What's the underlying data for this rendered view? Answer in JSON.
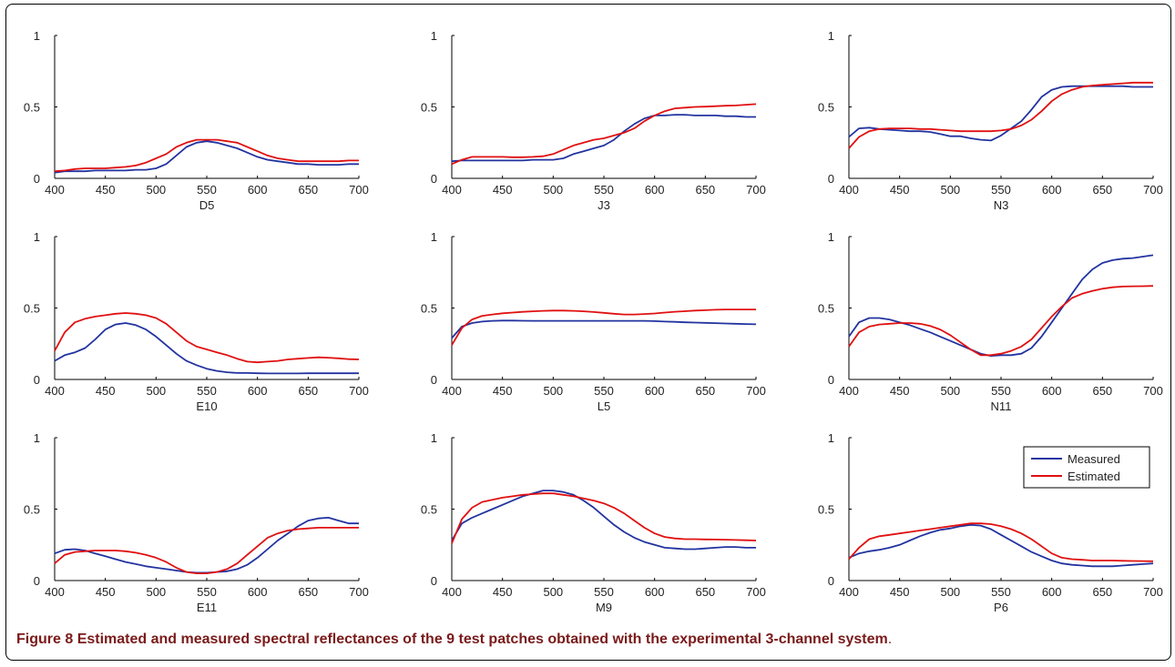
{
  "figure": {
    "caption_label": "Figure 8",
    "caption_text": "Estimated and measured spectral reflectances of the 9 test patches obtained with the experimental 3-channel system",
    "caption_period": "."
  },
  "colors": {
    "measured": "#2233a0",
    "estimated": "#e01010"
  },
  "chart_data": [
    {
      "type": "line",
      "title": "",
      "xlabel": "D5",
      "ylabel": "",
      "xlim": [
        400,
        700
      ],
      "ylim": [
        0,
        1
      ],
      "xticks": [
        400,
        450,
        500,
        550,
        600,
        650,
        700
      ],
      "yticks": [
        0,
        0.5,
        1
      ],
      "x": [
        400,
        410,
        420,
        430,
        440,
        450,
        460,
        470,
        480,
        490,
        500,
        510,
        520,
        530,
        540,
        550,
        560,
        570,
        580,
        590,
        600,
        610,
        620,
        630,
        640,
        650,
        660,
        670,
        680,
        690,
        700
      ],
      "series": [
        {
          "name": "Measured",
          "values": [
            0.04,
            0.05,
            0.05,
            0.05,
            0.055,
            0.055,
            0.055,
            0.055,
            0.06,
            0.06,
            0.07,
            0.1,
            0.16,
            0.22,
            0.25,
            0.26,
            0.25,
            0.23,
            0.21,
            0.18,
            0.15,
            0.13,
            0.12,
            0.11,
            0.1,
            0.1,
            0.095,
            0.095,
            0.095,
            0.1,
            0.1
          ]
        },
        {
          "name": "Estimated",
          "values": [
            0.05,
            0.055,
            0.065,
            0.07,
            0.07,
            0.07,
            0.075,
            0.08,
            0.09,
            0.11,
            0.14,
            0.17,
            0.22,
            0.25,
            0.27,
            0.27,
            0.27,
            0.26,
            0.25,
            0.22,
            0.19,
            0.16,
            0.14,
            0.13,
            0.12,
            0.12,
            0.12,
            0.12,
            0.12,
            0.125,
            0.125
          ]
        }
      ]
    },
    {
      "type": "line",
      "title": "",
      "xlabel": "J3",
      "ylabel": "",
      "xlim": [
        400,
        700
      ],
      "ylim": [
        0,
        1
      ],
      "xticks": [
        400,
        450,
        500,
        550,
        600,
        650,
        700
      ],
      "yticks": [
        0,
        0.5,
        1
      ],
      "x": [
        400,
        410,
        420,
        430,
        440,
        450,
        460,
        470,
        480,
        490,
        500,
        510,
        520,
        530,
        540,
        550,
        560,
        570,
        580,
        590,
        600,
        610,
        620,
        630,
        640,
        650,
        660,
        670,
        680,
        690,
        700
      ],
      "series": [
        {
          "name": "Measured",
          "values": [
            0.12,
            0.125,
            0.125,
            0.125,
            0.125,
            0.125,
            0.125,
            0.125,
            0.13,
            0.13,
            0.13,
            0.14,
            0.17,
            0.19,
            0.21,
            0.23,
            0.27,
            0.33,
            0.38,
            0.42,
            0.44,
            0.44,
            0.445,
            0.445,
            0.44,
            0.44,
            0.44,
            0.435,
            0.435,
            0.43,
            0.43
          ]
        },
        {
          "name": "Estimated",
          "values": [
            0.1,
            0.13,
            0.15,
            0.15,
            0.15,
            0.15,
            0.148,
            0.148,
            0.15,
            0.155,
            0.17,
            0.2,
            0.23,
            0.25,
            0.27,
            0.28,
            0.3,
            0.32,
            0.35,
            0.4,
            0.44,
            0.47,
            0.49,
            0.495,
            0.5,
            0.502,
            0.505,
            0.508,
            0.51,
            0.515,
            0.52
          ]
        }
      ]
    },
    {
      "type": "line",
      "title": "",
      "xlabel": "N3",
      "ylabel": "",
      "xlim": [
        400,
        700
      ],
      "ylim": [
        0,
        1
      ],
      "xticks": [
        400,
        450,
        500,
        550,
        600,
        650,
        700
      ],
      "yticks": [
        0,
        0.5,
        1
      ],
      "x": [
        400,
        410,
        420,
        430,
        440,
        450,
        460,
        470,
        480,
        490,
        500,
        510,
        520,
        530,
        540,
        550,
        560,
        570,
        580,
        590,
        600,
        610,
        620,
        630,
        640,
        650,
        660,
        670,
        680,
        690,
        700
      ],
      "series": [
        {
          "name": "Measured",
          "values": [
            0.29,
            0.35,
            0.355,
            0.345,
            0.34,
            0.335,
            0.33,
            0.33,
            0.325,
            0.31,
            0.295,
            0.295,
            0.28,
            0.27,
            0.265,
            0.3,
            0.35,
            0.4,
            0.48,
            0.57,
            0.62,
            0.64,
            0.645,
            0.645,
            0.645,
            0.645,
            0.645,
            0.645,
            0.64,
            0.64,
            0.64
          ]
        },
        {
          "name": "Estimated",
          "values": [
            0.21,
            0.29,
            0.33,
            0.345,
            0.35,
            0.35,
            0.35,
            0.345,
            0.345,
            0.34,
            0.335,
            0.33,
            0.33,
            0.33,
            0.33,
            0.335,
            0.345,
            0.37,
            0.41,
            0.47,
            0.54,
            0.59,
            0.62,
            0.64,
            0.65,
            0.655,
            0.66,
            0.665,
            0.67,
            0.67,
            0.67
          ]
        }
      ]
    },
    {
      "type": "line",
      "title": "",
      "xlabel": "E10",
      "ylabel": "",
      "xlim": [
        400,
        700
      ],
      "ylim": [
        0,
        1
      ],
      "xticks": [
        400,
        450,
        500,
        550,
        600,
        650,
        700
      ],
      "yticks": [
        0,
        0.5,
        1
      ],
      "x": [
        400,
        410,
        420,
        430,
        440,
        450,
        460,
        470,
        480,
        490,
        500,
        510,
        520,
        530,
        540,
        550,
        560,
        570,
        580,
        590,
        600,
        610,
        620,
        630,
        640,
        650,
        660,
        670,
        680,
        690,
        700
      ],
      "series": [
        {
          "name": "Measured",
          "values": [
            0.13,
            0.17,
            0.19,
            0.22,
            0.28,
            0.35,
            0.385,
            0.395,
            0.38,
            0.35,
            0.3,
            0.24,
            0.18,
            0.13,
            0.1,
            0.075,
            0.06,
            0.05,
            0.045,
            0.045,
            0.043,
            0.042,
            0.042,
            0.042,
            0.042,
            0.043,
            0.043,
            0.043,
            0.043,
            0.043,
            0.043
          ]
        },
        {
          "name": "Estimated",
          "values": [
            0.2,
            0.33,
            0.4,
            0.425,
            0.44,
            0.45,
            0.46,
            0.465,
            0.46,
            0.45,
            0.43,
            0.39,
            0.33,
            0.27,
            0.23,
            0.21,
            0.19,
            0.17,
            0.145,
            0.125,
            0.12,
            0.125,
            0.13,
            0.14,
            0.145,
            0.15,
            0.155,
            0.152,
            0.148,
            0.142,
            0.14
          ]
        }
      ]
    },
    {
      "type": "line",
      "title": "",
      "xlabel": "L5",
      "ylabel": "",
      "xlim": [
        400,
        700
      ],
      "ylim": [
        0,
        1
      ],
      "xticks": [
        400,
        450,
        500,
        550,
        600,
        650,
        700
      ],
      "yticks": [
        0,
        0.5,
        1
      ],
      "x": [
        400,
        410,
        420,
        430,
        440,
        450,
        460,
        470,
        480,
        490,
        500,
        510,
        520,
        530,
        540,
        550,
        560,
        570,
        580,
        590,
        600,
        610,
        620,
        630,
        640,
        650,
        660,
        670,
        680,
        690,
        700
      ],
      "series": [
        {
          "name": "Measured",
          "values": [
            0.29,
            0.37,
            0.395,
            0.405,
            0.41,
            0.412,
            0.412,
            0.411,
            0.41,
            0.41,
            0.41,
            0.41,
            0.41,
            0.41,
            0.41,
            0.41,
            0.41,
            0.41,
            0.41,
            0.41,
            0.408,
            0.405,
            0.403,
            0.4,
            0.398,
            0.396,
            0.394,
            0.392,
            0.39,
            0.388,
            0.386
          ]
        },
        {
          "name": "Estimated",
          "values": [
            0.24,
            0.36,
            0.42,
            0.445,
            0.455,
            0.463,
            0.468,
            0.473,
            0.477,
            0.48,
            0.482,
            0.482,
            0.48,
            0.477,
            0.472,
            0.466,
            0.46,
            0.455,
            0.455,
            0.458,
            0.462,
            0.468,
            0.474,
            0.478,
            0.482,
            0.485,
            0.488,
            0.49,
            0.49,
            0.49,
            0.49
          ]
        }
      ]
    },
    {
      "type": "line",
      "title": "",
      "xlabel": "N11",
      "ylabel": "",
      "xlim": [
        400,
        700
      ],
      "ylim": [
        0,
        1
      ],
      "xticks": [
        400,
        450,
        500,
        550,
        600,
        650,
        700
      ],
      "yticks": [
        0,
        0.5,
        1
      ],
      "x": [
        400,
        410,
        420,
        430,
        440,
        450,
        460,
        470,
        480,
        490,
        500,
        510,
        520,
        530,
        540,
        550,
        560,
        570,
        580,
        590,
        600,
        610,
        620,
        630,
        640,
        650,
        660,
        670,
        680,
        690,
        700
      ],
      "series": [
        {
          "name": "Measured",
          "values": [
            0.3,
            0.4,
            0.43,
            0.43,
            0.42,
            0.4,
            0.38,
            0.355,
            0.33,
            0.3,
            0.27,
            0.24,
            0.21,
            0.18,
            0.165,
            0.17,
            0.17,
            0.18,
            0.22,
            0.3,
            0.4,
            0.5,
            0.6,
            0.7,
            0.77,
            0.815,
            0.835,
            0.845,
            0.85,
            0.86,
            0.87
          ]
        },
        {
          "name": "Estimated",
          "values": [
            0.23,
            0.33,
            0.37,
            0.385,
            0.39,
            0.395,
            0.395,
            0.39,
            0.375,
            0.35,
            0.31,
            0.26,
            0.21,
            0.17,
            0.17,
            0.18,
            0.2,
            0.23,
            0.28,
            0.36,
            0.44,
            0.51,
            0.57,
            0.6,
            0.62,
            0.635,
            0.645,
            0.65,
            0.652,
            0.653,
            0.655
          ]
        }
      ]
    },
    {
      "type": "line",
      "title": "",
      "xlabel": "E11",
      "ylabel": "",
      "xlim": [
        400,
        700
      ],
      "ylim": [
        0,
        1
      ],
      "xticks": [
        400,
        450,
        500,
        550,
        600,
        650,
        700
      ],
      "yticks": [
        0,
        0.5,
        1
      ],
      "x": [
        400,
        410,
        420,
        430,
        440,
        450,
        460,
        470,
        480,
        490,
        500,
        510,
        520,
        530,
        540,
        550,
        560,
        570,
        580,
        590,
        600,
        610,
        620,
        630,
        640,
        650,
        660,
        670,
        680,
        690,
        700
      ],
      "series": [
        {
          "name": "Measured",
          "values": [
            0.19,
            0.215,
            0.22,
            0.21,
            0.19,
            0.17,
            0.15,
            0.13,
            0.115,
            0.1,
            0.09,
            0.08,
            0.07,
            0.06,
            0.055,
            0.055,
            0.06,
            0.065,
            0.08,
            0.11,
            0.16,
            0.22,
            0.28,
            0.33,
            0.38,
            0.42,
            0.435,
            0.44,
            0.42,
            0.4,
            0.4
          ]
        },
        {
          "name": "Estimated",
          "values": [
            0.12,
            0.18,
            0.2,
            0.205,
            0.21,
            0.21,
            0.21,
            0.205,
            0.195,
            0.18,
            0.16,
            0.13,
            0.09,
            0.06,
            0.05,
            0.05,
            0.06,
            0.08,
            0.12,
            0.18,
            0.24,
            0.3,
            0.33,
            0.35,
            0.36,
            0.365,
            0.37,
            0.37,
            0.37,
            0.37,
            0.37
          ]
        }
      ]
    },
    {
      "type": "line",
      "title": "",
      "xlabel": "M9",
      "ylabel": "",
      "xlim": [
        400,
        700
      ],
      "ylim": [
        0,
        1
      ],
      "xticks": [
        400,
        450,
        500,
        550,
        600,
        650,
        700
      ],
      "yticks": [
        0,
        0.5,
        1
      ],
      "x": [
        400,
        410,
        420,
        430,
        440,
        450,
        460,
        470,
        480,
        490,
        500,
        510,
        520,
        530,
        540,
        550,
        560,
        570,
        580,
        590,
        600,
        610,
        620,
        630,
        640,
        650,
        660,
        670,
        680,
        690,
        700
      ],
      "series": [
        {
          "name": "Measured",
          "values": [
            0.28,
            0.4,
            0.44,
            0.47,
            0.5,
            0.53,
            0.56,
            0.59,
            0.61,
            0.63,
            0.63,
            0.62,
            0.6,
            0.56,
            0.51,
            0.45,
            0.39,
            0.34,
            0.3,
            0.27,
            0.25,
            0.23,
            0.225,
            0.22,
            0.22,
            0.225,
            0.23,
            0.235,
            0.235,
            0.23,
            0.23
          ]
        },
        {
          "name": "Estimated",
          "values": [
            0.26,
            0.43,
            0.51,
            0.55,
            0.565,
            0.58,
            0.59,
            0.6,
            0.605,
            0.61,
            0.61,
            0.6,
            0.59,
            0.575,
            0.56,
            0.54,
            0.51,
            0.47,
            0.42,
            0.37,
            0.33,
            0.305,
            0.295,
            0.29,
            0.29,
            0.288,
            0.287,
            0.286,
            0.284,
            0.282,
            0.28
          ]
        }
      ]
    },
    {
      "type": "line",
      "title": "",
      "xlabel": "P6",
      "ylabel": "",
      "xlim": [
        400,
        700
      ],
      "ylim": [
        0,
        1
      ],
      "xticks": [
        400,
        450,
        500,
        550,
        600,
        650,
        700
      ],
      "yticks": [
        0,
        0.5,
        1
      ],
      "legend": {
        "position": "top-right",
        "entries": [
          "Measured",
          "Estimated"
        ]
      },
      "x": [
        400,
        410,
        420,
        430,
        440,
        450,
        460,
        470,
        480,
        490,
        500,
        510,
        520,
        530,
        540,
        550,
        560,
        570,
        580,
        590,
        600,
        610,
        620,
        630,
        640,
        650,
        660,
        670,
        680,
        690,
        700
      ],
      "series": [
        {
          "name": "Measured",
          "values": [
            0.16,
            0.19,
            0.205,
            0.215,
            0.23,
            0.25,
            0.28,
            0.31,
            0.335,
            0.355,
            0.365,
            0.38,
            0.39,
            0.385,
            0.36,
            0.32,
            0.28,
            0.24,
            0.2,
            0.17,
            0.14,
            0.12,
            0.11,
            0.105,
            0.1,
            0.1,
            0.1,
            0.105,
            0.11,
            0.115,
            0.12
          ]
        },
        {
          "name": "Estimated",
          "values": [
            0.15,
            0.23,
            0.29,
            0.31,
            0.32,
            0.33,
            0.34,
            0.35,
            0.36,
            0.37,
            0.38,
            0.39,
            0.4,
            0.4,
            0.395,
            0.38,
            0.36,
            0.33,
            0.29,
            0.24,
            0.19,
            0.16,
            0.15,
            0.145,
            0.14,
            0.14,
            0.14,
            0.138,
            0.137,
            0.136,
            0.135
          ]
        }
      ]
    }
  ]
}
